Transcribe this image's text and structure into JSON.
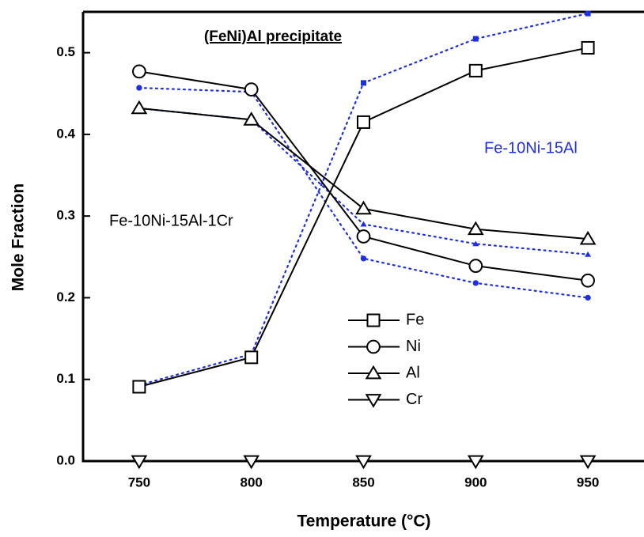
{
  "chart_data": {
    "type": "line",
    "x_label": "Temperature (°C)",
    "y_label": "Mole Fraction",
    "x": [
      750,
      800,
      850,
      900,
      950
    ],
    "xlim": [
      725,
      975
    ],
    "xticks": [
      750,
      800,
      850,
      900,
      950
    ],
    "ylim": [
      0,
      0.55
    ],
    "yticks": [
      {
        "value": 0,
        "label": "0.0"
      },
      0.1,
      0.2,
      0.3,
      0.4,
      0.5
    ],
    "annotations": [
      "(FeNi)Al precipitate",
      "Fe-10Ni-15Al",
      "Fe-10Ni-15Al-1Cr"
    ],
    "series": [
      {
        "name": "Fe",
        "color": "#000000",
        "marker": "square",
        "line": "solid",
        "values": [
          0.091,
          0.127,
          0.415,
          0.478,
          0.506
        ]
      },
      {
        "name": "Ni",
        "color": "#000000",
        "marker": "circle",
        "line": "solid",
        "values": [
          0.477,
          0.455,
          0.275,
          0.239,
          0.221
        ]
      },
      {
        "name": "Al",
        "color": "#000000",
        "marker": "triangle-up",
        "line": "solid",
        "values": [
          0.432,
          0.418,
          0.309,
          0.284,
          0.272
        ]
      },
      {
        "name": "Cr",
        "color": "#000000",
        "marker": "triangle-down",
        "line": "solid",
        "values": [
          0,
          0,
          0,
          0,
          0
        ]
      },
      {
        "color": "#1f2fe0",
        "marker": "square",
        "line": "dotted",
        "values": [
          0.093,
          0.131,
          0.463,
          0.517,
          0.548
        ]
      },
      {
        "color": "#1f2fe0",
        "marker": "circle",
        "line": "dotted",
        "values": [
          0.457,
          0.452,
          0.248,
          0.218,
          0.2
        ]
      },
      {
        "color": "#1f2fe0",
        "marker": "triangle-up",
        "line": "dotted",
        "values": [
          0.432,
          0.418,
          0.29,
          0.266,
          0.253
        ]
      }
    ]
  }
}
